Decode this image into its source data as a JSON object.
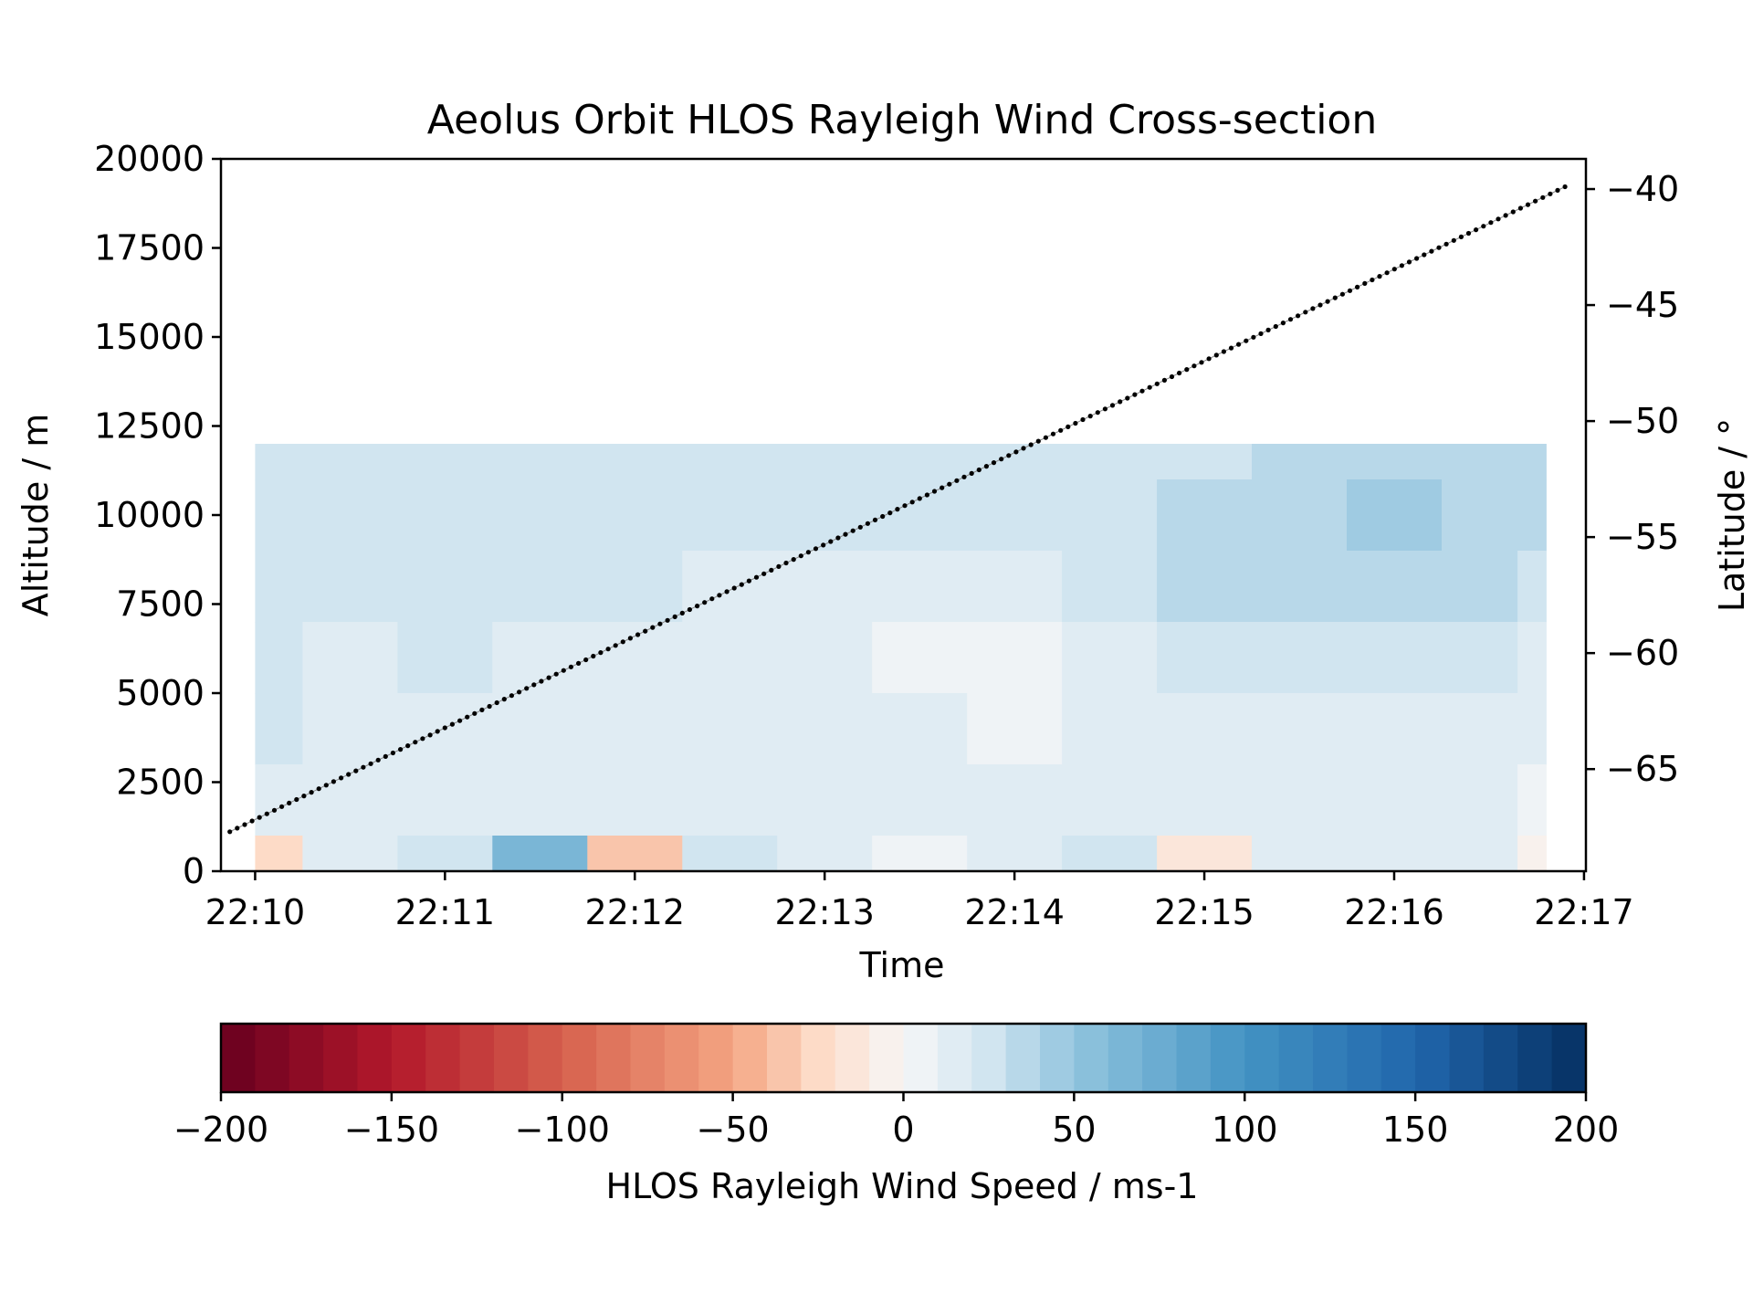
{
  "chart_data": {
    "type": "heatmap",
    "title": "Aeolus Orbit HLOS Rayleigh Wind Cross-section",
    "xlabel": "Time",
    "ylabel": "Altitude / m",
    "y2label": "Latitude / °",
    "xticks": [
      "22:10",
      "22:11",
      "22:12",
      "22:13",
      "22:14",
      "22:15",
      "22:16",
      "22:17"
    ],
    "yticks": [
      "0",
      "2500",
      "5000",
      "7500",
      "10000",
      "12500",
      "15000",
      "17500",
      "20000"
    ],
    "y2ticks": [
      "−40",
      "−45",
      "−50",
      "−55",
      "−60",
      "−65"
    ],
    "ylim": [
      0,
      20000
    ],
    "y2lim": [
      -69.4,
      -38.7
    ],
    "xlim_minutes_after_2200": [
      9.82,
      17.01
    ],
    "data_extent": {
      "time_start": "22:10",
      "time_end": "22:16:48",
      "altitude_top_m": 12000,
      "altitude_bottom_m": 0
    },
    "time_nodes": [
      "22:10",
      "22:10:30",
      "22:11",
      "22:11:30",
      "22:12",
      "22:12:30",
      "22:13",
      "22:13:30",
      "22:14",
      "22:14:30",
      "22:15",
      "22:15:30",
      "22:16",
      "22:16:30",
      "22:16:48"
    ],
    "altitude_nodes_m": [
      12000,
      10000,
      8000,
      6000,
      4000,
      2000,
      0
    ],
    "wind_speed_grid_ms": [
      [
        22,
        20,
        20,
        24,
        22,
        20,
        24,
        22,
        24,
        22,
        28,
        34,
        36,
        34,
        30
      ],
      [
        20,
        22,
        24,
        20,
        20,
        26,
        22,
        20,
        22,
        24,
        32,
        36,
        40,
        38,
        34
      ],
      [
        24,
        20,
        20,
        22,
        24,
        18,
        14,
        10,
        12,
        20,
        30,
        34,
        36,
        30,
        28
      ],
      [
        22,
        18,
        20,
        16,
        18,
        14,
        10,
        6,
        6,
        12,
        20,
        24,
        22,
        20,
        18
      ],
      [
        20,
        16,
        14,
        18,
        14,
        16,
        12,
        10,
        8,
        10,
        14,
        16,
        18,
        16,
        14
      ],
      [
        16,
        14,
        12,
        16,
        10,
        14,
        18,
        12,
        14,
        12,
        10,
        14,
        12,
        10,
        8
      ],
      [
        -30,
        16,
        20,
        60,
        -40,
        24,
        10,
        6,
        14,
        20,
        -20,
        16,
        12,
        10,
        -10
      ]
    ],
    "orbit_track": {
      "series": "latitude",
      "x": [
        "22:09:52",
        "22:16:54"
      ],
      "y": [
        -67.7,
        -39.9
      ]
    },
    "colorbar": {
      "label": "HLOS Rayleigh Wind Speed / ms-1",
      "ticks": [
        "−200",
        "−150",
        "−100",
        "−50",
        "0",
        "50",
        "100",
        "150",
        "200"
      ],
      "range": [
        -200,
        200
      ],
      "levels": 40,
      "colormap": "RdBu"
    }
  }
}
